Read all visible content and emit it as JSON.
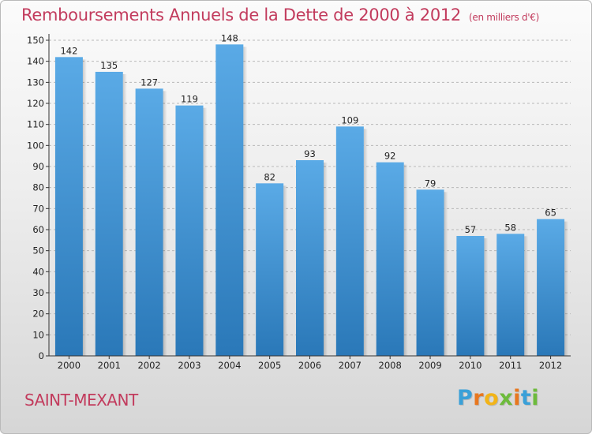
{
  "header": {
    "title": "Remboursements Annuels de la Dette de 2000 à 2012",
    "unit": "(en milliers d'€)"
  },
  "footer": {
    "commune": "SAINT-MEXANT",
    "logo_letters": [
      "P",
      "r",
      "o",
      "x",
      "i",
      "t",
      "i"
    ],
    "logo_colors": [
      "#3aa0d8",
      "#e8771f",
      "#f2b418",
      "#6dbb3c",
      "#e8771f",
      "#3aa0d8",
      "#6dbb3c"
    ]
  },
  "colors": {
    "title": "#c23b5d",
    "bar_top": "#5aaae6",
    "bar_bottom": "#2a78b8",
    "axis": "#333333"
  },
  "chart_data": {
    "type": "bar",
    "title": "Remboursements Annuels de la Dette de 2000 à 2012",
    "categories": [
      "2000",
      "2001",
      "2002",
      "2003",
      "2004",
      "2005",
      "2006",
      "2007",
      "2008",
      "2009",
      "2010",
      "2011",
      "2012"
    ],
    "values": [
      142,
      135,
      127,
      119,
      148,
      82,
      93,
      109,
      92,
      79,
      57,
      58,
      65
    ],
    "ylim": [
      0,
      150
    ],
    "yticks": [
      0,
      10,
      20,
      30,
      40,
      50,
      60,
      70,
      80,
      90,
      100,
      110,
      120,
      130,
      140,
      150
    ],
    "grid": true,
    "xlabel": "",
    "ylabel": ""
  }
}
